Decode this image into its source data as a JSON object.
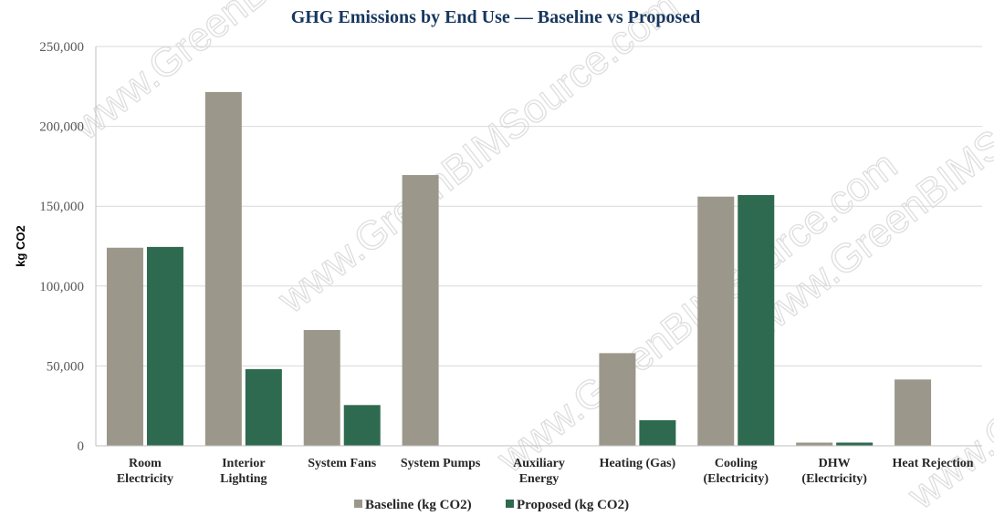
{
  "chart_data": {
    "type": "bar",
    "title": "GHG Emissions by End Use — Baseline vs Proposed",
    "xlabel": "",
    "ylabel": "kg CO2",
    "ylim": [
      0,
      250000
    ],
    "yticks": [
      0,
      50000,
      100000,
      150000,
      200000,
      250000
    ],
    "ytick_labels": [
      "0",
      "50,000",
      "100,000",
      "150,000",
      "200,000",
      "250,000"
    ],
    "grid": true,
    "legend_position": "bottom",
    "categories": [
      [
        "Room",
        "Electricity"
      ],
      [
        "Interior",
        "Lighting"
      ],
      [
        "System Fans"
      ],
      [
        "System Pumps"
      ],
      [
        "Auxiliary",
        "Energy"
      ],
      [
        "Heating (Gas)"
      ],
      [
        "Cooling",
        "(Electricity)"
      ],
      [
        "DHW",
        "(Electricity)"
      ],
      [
        "Heat Rejection"
      ]
    ],
    "series": [
      {
        "name": "Baseline (kg CO2)",
        "color": "#9b978a",
        "values": [
          124000,
          221500,
          72500,
          169500,
          0,
          58000,
          156000,
          2000,
          41500
        ]
      },
      {
        "name": "Proposed (kg CO2)",
        "color": "#2e6a4f",
        "values": [
          124500,
          48000,
          25500,
          0,
          0,
          16000,
          157000,
          2000,
          0
        ]
      }
    ]
  },
  "watermark": {
    "text": "www.GreenBIMSource.com"
  },
  "colors": {
    "title": "#17375e",
    "gridline": "#d9d9d9",
    "axis": "#bfbfbf"
  }
}
